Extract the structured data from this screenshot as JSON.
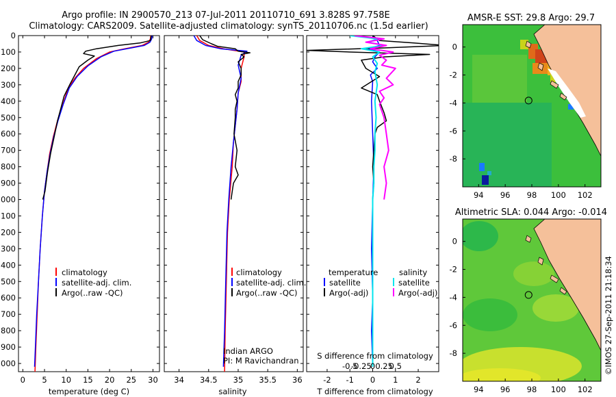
{
  "header": {
    "line1": "Argo profile: IN 2900570_213 07-Jul-2011 20110710_691 3.828S 97.758E",
    "line2": "Climatology: CARS2009. Satellite-adjusted climatology: synTS_20110706.nc (1.5d earlier)"
  },
  "colors": {
    "clim": "#ff0000",
    "sat": "#0000ff",
    "argo": "#000000",
    "sat_s": "#00e5ee",
    "argo_s": "#ff00ff",
    "land": "#f5c09a"
  },
  "chart_data": [
    {
      "type": "line",
      "id": "temperature",
      "xlabel": "temperature (deg C)",
      "xlim": [
        -1,
        31.5
      ],
      "xticks": [
        0,
        5,
        10,
        15,
        20,
        25,
        30
      ],
      "ylim": [
        2050,
        0
      ],
      "yticks": [
        0,
        100,
        200,
        300,
        400,
        500,
        600,
        700,
        800,
        900,
        1000,
        1100,
        1200,
        1300,
        1400,
        1500,
        1600,
        1700,
        1800,
        1900,
        2000
      ],
      "legend": [
        "climatology",
        "satellite-adj. clim.",
        "Argo(..raw -QC)"
      ],
      "series": [
        {
          "name": "climatology",
          "points": [
            [
              29.5,
              0
            ],
            [
              29.4,
              20
            ],
            [
              29.0,
              40
            ],
            [
              27.5,
              60
            ],
            [
              23.5,
              80
            ],
            [
              20.0,
              100
            ],
            [
              17.0,
              140
            ],
            [
              14.0,
              200
            ],
            [
              12.0,
              260
            ],
            [
              10.5,
              320
            ],
            [
              9.2,
              420
            ],
            [
              8.0,
              520
            ],
            [
              7.0,
              620
            ],
            [
              6.2,
              720
            ],
            [
              5.6,
              830
            ],
            [
              5.0,
              950
            ],
            [
              4.5,
              1100
            ],
            [
              4.0,
              1300
            ],
            [
              3.6,
              1500
            ],
            [
              3.3,
              1700
            ],
            [
              3.0,
              1900
            ],
            [
              2.8,
              2050
            ]
          ]
        },
        {
          "name": "satellite-adj. clim.",
          "points": [
            [
              29.8,
              0
            ],
            [
              29.7,
              20
            ],
            [
              29.3,
              40
            ],
            [
              28.0,
              60
            ],
            [
              25.0,
              75
            ],
            [
              21.0,
              95
            ],
            [
              18.0,
              130
            ],
            [
              15.0,
              185
            ],
            [
              12.5,
              250
            ],
            [
              10.7,
              320
            ],
            [
              9.3,
              420
            ],
            [
              8.1,
              520
            ],
            [
              7.1,
              620
            ],
            [
              6.3,
              720
            ],
            [
              5.6,
              830
            ],
            [
              5.0,
              950
            ],
            [
              4.5,
              1100
            ],
            [
              4.0,
              1300
            ],
            [
              3.6,
              1500
            ],
            [
              3.2,
              1700
            ],
            [
              2.9,
              1900
            ],
            [
              2.7,
              2020
            ]
          ]
        },
        {
          "name": "Argo(..raw -QC)",
          "points": [
            [
              29.6,
              0
            ],
            [
              29.4,
              30
            ],
            [
              27.0,
              45
            ],
            [
              22.0,
              60
            ],
            [
              17.0,
              80
            ],
            [
              14.5,
              95
            ],
            [
              14.0,
              110
            ],
            [
              16.5,
              125
            ],
            [
              15.0,
              150
            ],
            [
              13.0,
              190
            ],
            [
              12.0,
              240
            ],
            [
              10.8,
              300
            ],
            [
              9.5,
              370
            ],
            [
              8.7,
              450
            ],
            [
              8.0,
              520
            ],
            [
              7.2,
              620
            ],
            [
              6.4,
              720
            ],
            [
              5.7,
              830
            ],
            [
              5.1,
              950
            ],
            [
              4.6,
              1000
            ]
          ]
        }
      ]
    },
    {
      "type": "line",
      "id": "salinity",
      "xlabel": "salinity",
      "xlim": [
        33.75,
        36.1
      ],
      "xticks": [
        34,
        34.5,
        35,
        35.5,
        36
      ],
      "xticklabels": [
        "34",
        "34.5",
        "35",
        "35.5",
        "36"
      ],
      "ylim": [
        2050,
        0
      ],
      "legend": [
        "climatology",
        "satellite-adj. clim.",
        "Argo(..raw -QC)"
      ],
      "annotation": [
        "Indian ARGO",
        "PI: M Ravichandran"
      ],
      "series": [
        {
          "name": "climatology",
          "points": [
            [
              34.3,
              0
            ],
            [
              34.35,
              30
            ],
            [
              34.5,
              60
            ],
            [
              34.75,
              80
            ],
            [
              35.1,
              100
            ],
            [
              35.1,
              130
            ],
            [
              35.05,
              200
            ],
            [
              35.05,
              280
            ],
            [
              35.0,
              350
            ],
            [
              34.98,
              450
            ],
            [
              34.95,
              550
            ],
            [
              34.92,
              650
            ],
            [
              34.9,
              800
            ],
            [
              34.85,
              1000
            ],
            [
              34.82,
              1200
            ],
            [
              34.8,
              1500
            ],
            [
              34.78,
              1800
            ],
            [
              34.77,
              2050
            ]
          ]
        },
        {
          "name": "satellite-adj. clim.",
          "points": [
            [
              34.25,
              0
            ],
            [
              34.3,
              30
            ],
            [
              34.45,
              60
            ],
            [
              34.7,
              80
            ],
            [
              35.15,
              95
            ],
            [
              35.05,
              120
            ],
            [
              35.0,
              180
            ],
            [
              35.05,
              260
            ],
            [
              35.0,
              350
            ],
            [
              34.98,
              450
            ],
            [
              34.95,
              550
            ],
            [
              34.92,
              650
            ],
            [
              34.88,
              800
            ],
            [
              34.84,
              1000
            ],
            [
              34.81,
              1200
            ],
            [
              34.79,
              1500
            ],
            [
              34.77,
              1800
            ],
            [
              34.75,
              2020
            ]
          ]
        },
        {
          "name": "Argo(..raw -QC)",
          "points": [
            [
              34.35,
              0
            ],
            [
              34.4,
              25
            ],
            [
              34.55,
              50
            ],
            [
              34.65,
              65
            ],
            [
              34.95,
              80
            ],
            [
              35.0,
              95
            ],
            [
              35.2,
              105
            ],
            [
              35.05,
              115
            ],
            [
              35.1,
              130
            ],
            [
              35.0,
              160
            ],
            [
              35.05,
              200
            ],
            [
              35.05,
              240
            ],
            [
              35.0,
              280
            ],
            [
              35.0,
              320
            ],
            [
              34.95,
              360
            ],
            [
              34.98,
              400
            ],
            [
              34.95,
              450
            ],
            [
              34.95,
              500
            ],
            [
              34.93,
              600
            ],
            [
              34.98,
              700
            ],
            [
              34.95,
              800
            ],
            [
              35.0,
              850
            ],
            [
              34.92,
              900
            ],
            [
              34.9,
              950
            ],
            [
              34.88,
              1000
            ]
          ]
        }
      ]
    },
    {
      "type": "line",
      "id": "difference",
      "xlabel": "T difference from climatology",
      "xlabel_top": "S difference from climatology",
      "xlim": [
        -2.9,
        2.9
      ],
      "xticks": [
        -2,
        -1,
        0,
        1,
        2
      ],
      "xticks_S": [
        -0.5,
        -0.25,
        0,
        0.25,
        0.5
      ],
      "xticklabels_S": [
        "-0.5",
        "-0.25",
        "0",
        "0.25",
        "0.5"
      ],
      "ylim": [
        2050,
        0
      ],
      "legend_titles": [
        "temperature",
        "salinity"
      ],
      "legend": [
        "satellite",
        "Argo(-adj)",
        "satellite",
        "Argo(-adj)"
      ],
      "series": [
        {
          "name": "satellite",
          "points": [
            [
              0.0,
              0
            ],
            [
              0.2,
              30
            ],
            [
              0.3,
              60
            ],
            [
              -0.2,
              80
            ],
            [
              0.3,
              100
            ],
            [
              0.1,
              130
            ],
            [
              0.0,
              160
            ],
            [
              0.2,
              200
            ],
            [
              -0.1,
              240
            ],
            [
              0.0,
              280
            ],
            [
              -0.05,
              400
            ],
            [
              0.0,
              600
            ],
            [
              0.05,
              800
            ],
            [
              0.0,
              1000
            ],
            [
              -0.05,
              1300
            ],
            [
              0.0,
              1600
            ],
            [
              -0.05,
              1800
            ],
            [
              0.0,
              2020
            ]
          ]
        },
        {
          "name": "Argo(-adj)",
          "points": [
            [
              0.0,
              0
            ],
            [
              0.3,
              30
            ],
            [
              1.8,
              45
            ],
            [
              3.2,
              60
            ],
            [
              0.5,
              75
            ],
            [
              -2.9,
              90
            ],
            [
              -1.0,
              100
            ],
            [
              2.5,
              115
            ],
            [
              0.5,
              130
            ],
            [
              -0.5,
              150
            ],
            [
              -0.3,
              200
            ],
            [
              0.3,
              250
            ],
            [
              -0.5,
              320
            ],
            [
              0.2,
              360
            ],
            [
              0.3,
              400
            ],
            [
              0.5,
              470
            ],
            [
              0.6,
              520
            ],
            [
              0.2,
              560
            ],
            [
              0.1,
              600
            ],
            [
              0.05,
              700
            ],
            [
              0.0,
              800
            ],
            [
              0.05,
              900
            ],
            [
              0.0,
              1000
            ]
          ]
        },
        {
          "name": "satellite",
          "points": [
            [
              -1.0,
              0
            ],
            [
              0.2,
              20
            ],
            [
              -0.2,
              40
            ],
            [
              0.5,
              60
            ],
            [
              -0.5,
              80
            ],
            [
              0.3,
              100
            ],
            [
              0.0,
              130
            ],
            [
              0.2,
              170
            ],
            [
              0.1,
              220
            ],
            [
              0.2,
              300
            ],
            [
              0.1,
              400
            ],
            [
              0.15,
              500
            ],
            [
              0.1,
              600
            ],
            [
              0.1,
              700
            ],
            [
              0.05,
              800
            ],
            [
              0.05,
              900
            ],
            [
              0.0,
              1000
            ],
            [
              0.0,
              1200
            ],
            [
              0.0,
              1500
            ],
            [
              0.0,
              1800
            ],
            [
              0.0,
              2020
            ]
          ]
        },
        {
          "name": "Argo(-adj)",
          "points": [
            [
              -0.8,
              0
            ],
            [
              0.5,
              20
            ],
            [
              -0.3,
              40
            ],
            [
              0.6,
              60
            ],
            [
              -0.1,
              80
            ],
            [
              0.9,
              100
            ],
            [
              0.3,
              120
            ],
            [
              0.6,
              150
            ],
            [
              0.4,
              180
            ],
            [
              1.0,
              200
            ],
            [
              0.6,
              260
            ],
            [
              0.9,
              300
            ],
            [
              0.3,
              340
            ],
            [
              0.5,
              380
            ],
            [
              0.3,
              420
            ],
            [
              0.5,
              500
            ],
            [
              0.6,
              600
            ],
            [
              0.7,
              700
            ],
            [
              0.5,
              800
            ],
            [
              0.6,
              900
            ],
            [
              0.5,
              1000
            ]
          ]
        }
      ]
    }
  ],
  "maps": [
    {
      "id": "sst",
      "title": "AMSR-E SST: 29.8 Argo: 29.7",
      "xlim": [
        92.8,
        103.2
      ],
      "ylim": [
        -10,
        1.6
      ],
      "xticks": [
        94,
        96,
        98,
        100,
        102
      ],
      "yticks": [
        0,
        -2,
        -4,
        -6,
        -8
      ],
      "marker": [
        97.758,
        -3.828
      ]
    },
    {
      "id": "sla",
      "title": "Altimetric SLA: 0.044 Argo: -0.014",
      "xlim": [
        92.8,
        103.2
      ],
      "ylim": [
        -10,
        1.6
      ],
      "xticks": [
        94,
        96,
        98,
        100,
        102
      ],
      "yticks": [
        0,
        -2,
        -4,
        -6,
        -8
      ],
      "marker": [
        97.758,
        -3.828
      ]
    }
  ],
  "footer": {
    "stamp": "©IMOS 27-Sep-2011 21:18:34"
  }
}
